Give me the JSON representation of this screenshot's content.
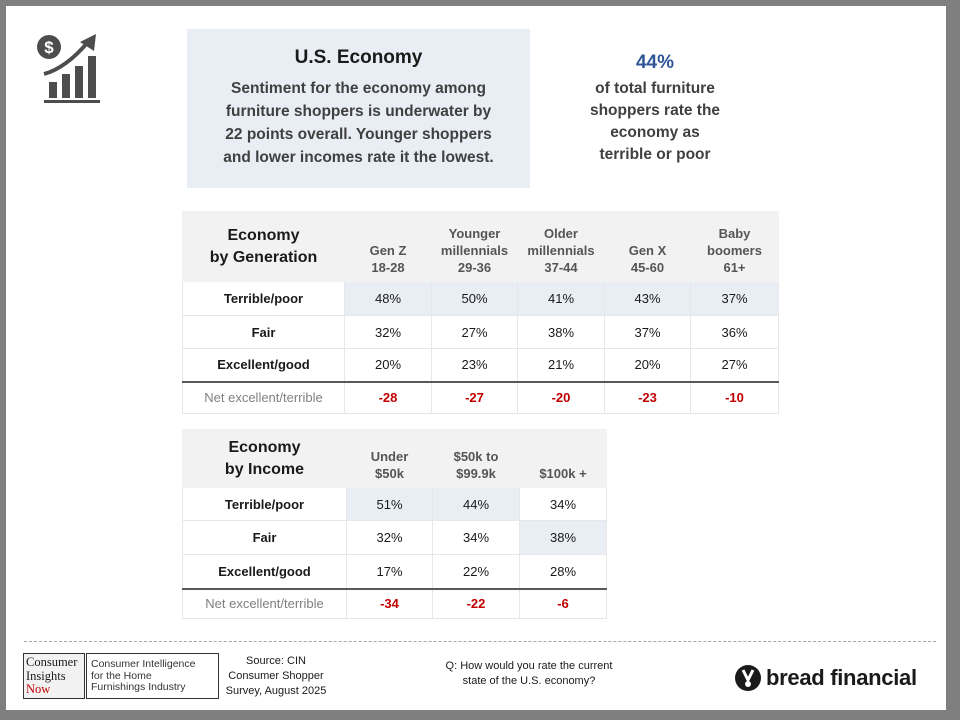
{
  "icon": "economy-growth-dollar-icon",
  "summary": {
    "title": "U.S. Economy",
    "lines": [
      "Sentiment for the economy among",
      "furniture shoppers is underwater by",
      "22 points overall. Younger shoppers",
      "and lower incomes rate it the lowest."
    ]
  },
  "stat": {
    "value": "44%",
    "lines": [
      "of total furniture",
      "shoppers rate the",
      "economy as",
      "terrible or poor"
    ]
  },
  "generation_table": {
    "title": [
      "Economy",
      "by Generation"
    ],
    "columns": [
      {
        "label": [
          "Gen Z",
          "18-28"
        ]
      },
      {
        "label": [
          "Younger",
          "millennials",
          "29-36"
        ]
      },
      {
        "label": [
          "Older",
          "millennials",
          "37-44"
        ]
      },
      {
        "label": [
          "Gen X",
          "45-60"
        ]
      },
      {
        "label": [
          "Baby",
          "boomers",
          "61+"
        ]
      }
    ],
    "rows": [
      {
        "label": "Terrible/poor",
        "values": [
          "48%",
          "50%",
          "41%",
          "43%",
          "37%"
        ]
      },
      {
        "label": "Fair",
        "values": [
          "32%",
          "27%",
          "38%",
          "37%",
          "36%"
        ]
      },
      {
        "label": "Excellent/good",
        "values": [
          "20%",
          "23%",
          "21%",
          "20%",
          "27%"
        ]
      }
    ],
    "net": {
      "label": "Net excellent/terrible",
      "values": [
        "-28",
        "-27",
        "-20",
        "-23",
        "-10"
      ]
    }
  },
  "income_table": {
    "title": [
      "Economy",
      "by Income"
    ],
    "columns": [
      {
        "label": [
          "Under",
          "$50k"
        ]
      },
      {
        "label": [
          "$50k to",
          "$99.9k"
        ]
      },
      {
        "label": [
          "$100k +"
        ]
      }
    ],
    "rows": [
      {
        "label": "Terrible/poor",
        "values": [
          "51%",
          "44%",
          "34%"
        ]
      },
      {
        "label": "Fair",
        "values": [
          "32%",
          "34%",
          "38%"
        ]
      },
      {
        "label": "Excellent/good",
        "values": [
          "17%",
          "22%",
          "28%"
        ]
      }
    ],
    "net": {
      "label": "Net excellent/terrible",
      "values": [
        "-34",
        "-22",
        "-6"
      ]
    }
  },
  "footer": {
    "cin_logo": {
      "left_lines": [
        "Consumer",
        "Insights",
        "Now"
      ],
      "right_lines": [
        "Consumer Intelligence",
        "for the Home",
        "Furnishings Industry"
      ]
    },
    "source_lines": [
      "Source: CIN",
      "Consumer Shopper",
      "Survey, August 2025"
    ],
    "question_lines": [
      "Q: How would you rate the current",
      "state of the U.S. economy?"
    ],
    "bread_logo": {
      "text": "bread financial",
      "mark": "bread-financial-mark-icon"
    }
  },
  "colors": {
    "accent_blue": "#2f5597",
    "negative_red": "#c00000",
    "highlight_fill": "#e8eef4",
    "header_fill": "#f2f2f2"
  }
}
